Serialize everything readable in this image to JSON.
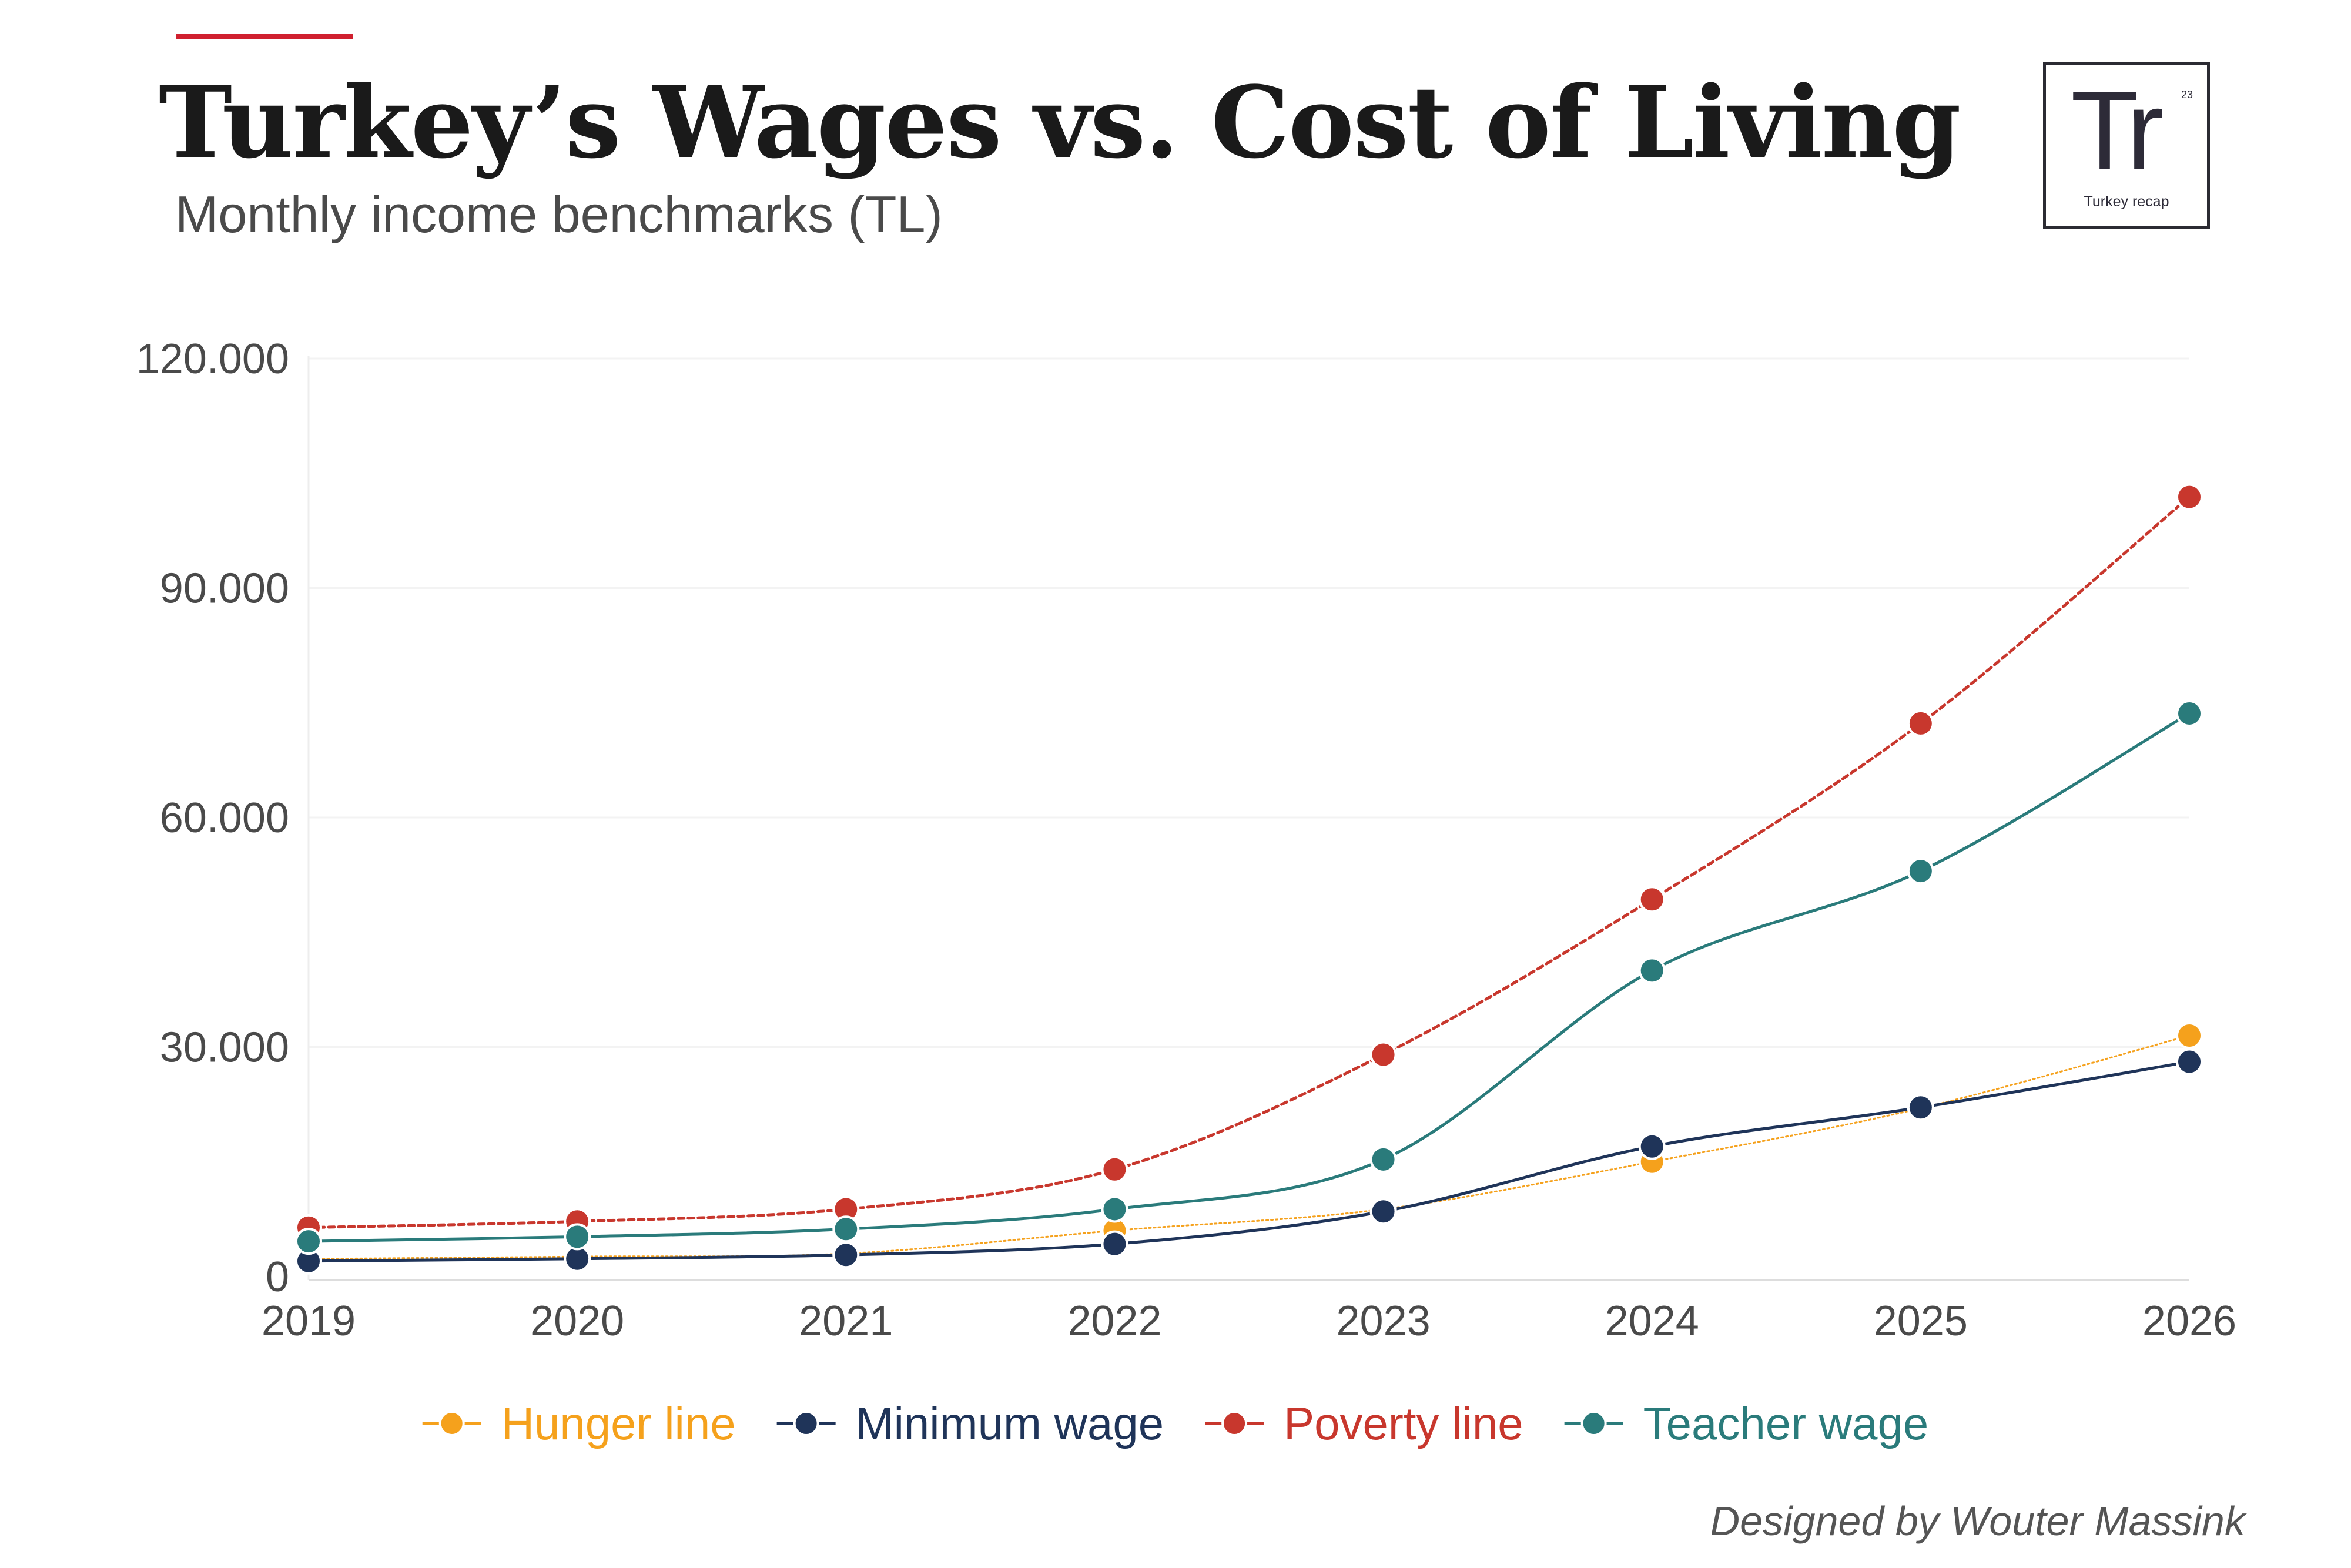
{
  "header": {
    "title": "Turkey’s Wages vs. Cost of Living",
    "subtitle": "Monthly income benchmarks (TL)"
  },
  "logo": {
    "mark": "Tr",
    "superscript": "23",
    "text": "Turkey recap"
  },
  "credit": "Designed by Wouter Massink",
  "chart_data": {
    "type": "line",
    "title": "Turkey’s Wages vs. Cost of Living",
    "subtitle": "Monthly income benchmarks (TL)",
    "xlabel": "",
    "ylabel": "",
    "x": [
      "2019",
      "2020",
      "2021",
      "2022",
      "2023",
      "2024",
      "2025",
      "2026"
    ],
    "ylim": [
      0,
      120000
    ],
    "y_ticks": [
      0,
      30000,
      60000,
      90000,
      120000
    ],
    "y_tick_labels": [
      "0",
      "30.000",
      "60.000",
      "90.000",
      "120.000"
    ],
    "grid": "horizontal",
    "legend_position": "bottom",
    "series": [
      {
        "name": "Hunger line",
        "color": "#f5a11c",
        "line_style": "dotted",
        "values": [
          2300,
          2600,
          3000,
          6000,
          8800,
          15000,
          22000,
          31500
        ]
      },
      {
        "name": "Minimum wage",
        "color": "#1f3459",
        "line_style": "solid",
        "values": [
          2020,
          2324,
          2826,
          4253,
          8507,
          17002,
          22104,
          28075
        ]
      },
      {
        "name": "Poverty line",
        "color": "#c8372d",
        "line_style": "dotted",
        "values": [
          6400,
          7200,
          8800,
          14000,
          29000,
          49300,
          72300,
          101900
        ]
      },
      {
        "name": "Teacher wage",
        "color": "#2a7b7b",
        "line_style": "solid",
        "values": [
          4600,
          5200,
          6200,
          8800,
          15300,
          40000,
          53000,
          73600
        ]
      }
    ]
  }
}
